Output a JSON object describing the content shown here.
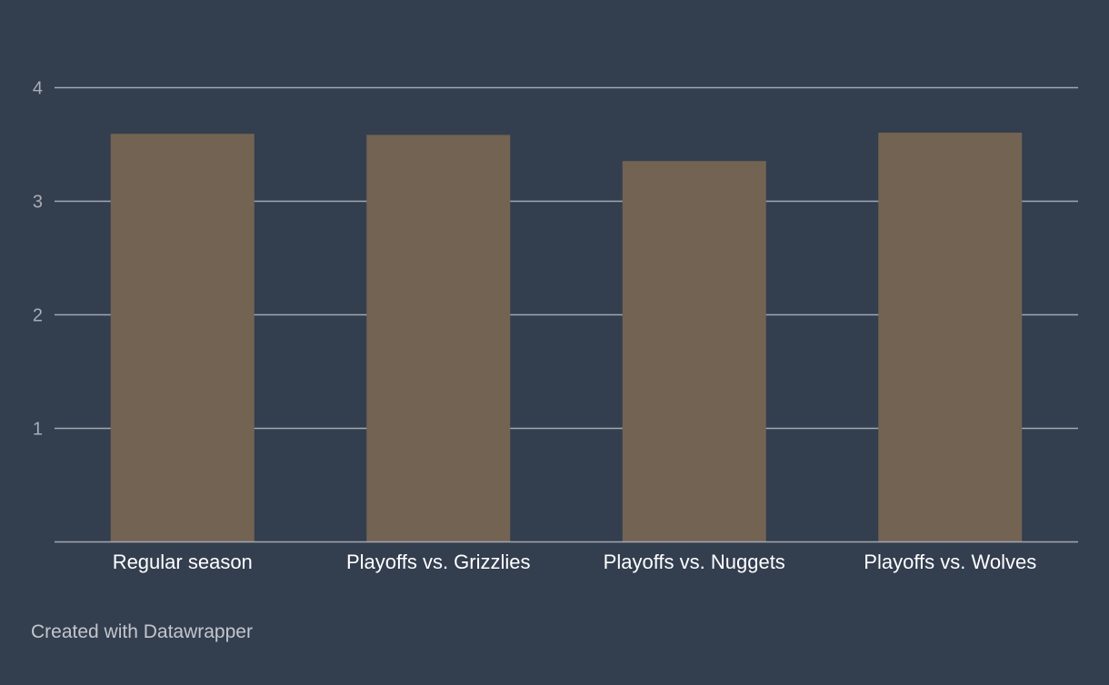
{
  "chart_data": {
    "type": "bar",
    "categories": [
      "Regular season",
      "Playoffs vs. Grizzlies",
      "Playoffs vs. Nuggets",
      "Playoffs vs. Wolves"
    ],
    "values": [
      3.59,
      3.58,
      3.35,
      3.6
    ],
    "ylim": [
      0,
      4
    ],
    "y_ticks": [
      "1",
      "2",
      "3",
      "4"
    ],
    "title": "",
    "xlabel": "",
    "ylabel": "",
    "grid": true,
    "legend": "none"
  },
  "footer": {
    "credit": "Created with Datawrapper"
  },
  "colors": {
    "background": "#333e4f",
    "bar": "#736352",
    "gridline": "#a3a8b0",
    "baseline": "#a3a8b0",
    "tick_label": "#a9adb5",
    "category_label": "#ffffff",
    "credit": "#c3c6cc"
  }
}
